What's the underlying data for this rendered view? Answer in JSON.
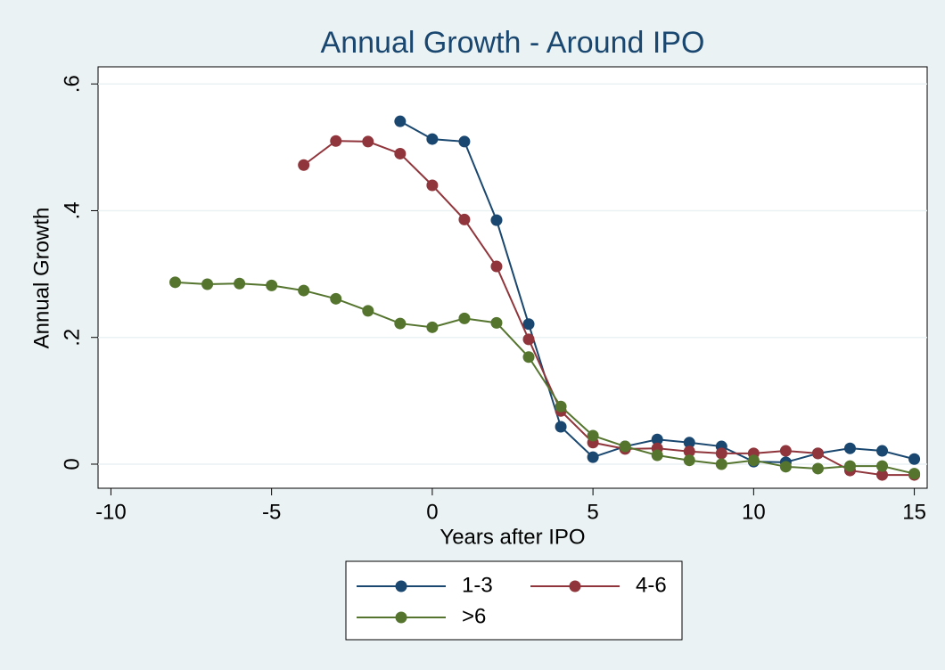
{
  "chart_data": {
    "type": "line",
    "title": "Annual Growth - Around IPO",
    "xlabel": "Years after IPO",
    "ylabel": "Annual Growth",
    "xlim": [
      -10.4,
      15.4
    ],
    "ylim": [
      -0.038,
      0.627
    ],
    "xticks": [
      -10,
      -5,
      0,
      5,
      10,
      15
    ],
    "yticks": [
      0,
      {
        "value": 0.2,
        "label": ".2"
      },
      {
        "value": 0.4,
        "label": ".4"
      },
      {
        "value": 0.6,
        "label": ".6"
      }
    ],
    "grid": true,
    "legend": "bottom",
    "series": [
      {
        "name": "1-3",
        "color": "#1a476f",
        "x": [
          -1,
          0,
          1,
          2,
          3,
          4,
          5,
          6,
          7,
          8,
          9,
          10,
          11,
          12,
          13,
          14,
          15
        ],
        "values": [
          0.541,
          0.513,
          0.509,
          0.385,
          0.221,
          0.059,
          0.011,
          0.028,
          0.039,
          0.034,
          0.028,
          0.004,
          0.003,
          0.017,
          0.025,
          0.021,
          0.008
        ]
      },
      {
        "name": "4-6",
        "color": "#90353b",
        "x": [
          -4,
          -3,
          -2,
          -1,
          0,
          1,
          2,
          3,
          4,
          5,
          6,
          7,
          8,
          9,
          10,
          11,
          12,
          13,
          14,
          15
        ],
        "values": [
          0.472,
          0.51,
          0.509,
          0.49,
          0.44,
          0.386,
          0.312,
          0.197,
          0.084,
          0.034,
          0.024,
          0.025,
          0.02,
          0.017,
          0.017,
          0.021,
          0.017,
          -0.01,
          -0.017,
          -0.017
        ]
      },
      {
        "name": ">6",
        "color": "#55752f",
        "x": [
          -8,
          -7,
          -6,
          -5,
          -4,
          -3,
          -2,
          -1,
          0,
          1,
          2,
          3,
          4,
          5,
          6,
          7,
          8,
          9,
          10,
          11,
          12,
          13,
          14,
          15
        ],
        "values": [
          0.287,
          0.284,
          0.285,
          0.282,
          0.274,
          0.261,
          0.242,
          0.222,
          0.216,
          0.23,
          0.223,
          0.169,
          0.091,
          0.045,
          0.028,
          0.014,
          0.006,
          0.0,
          0.006,
          -0.004,
          -0.007,
          -0.003,
          -0.003,
          -0.015
        ]
      }
    ]
  }
}
